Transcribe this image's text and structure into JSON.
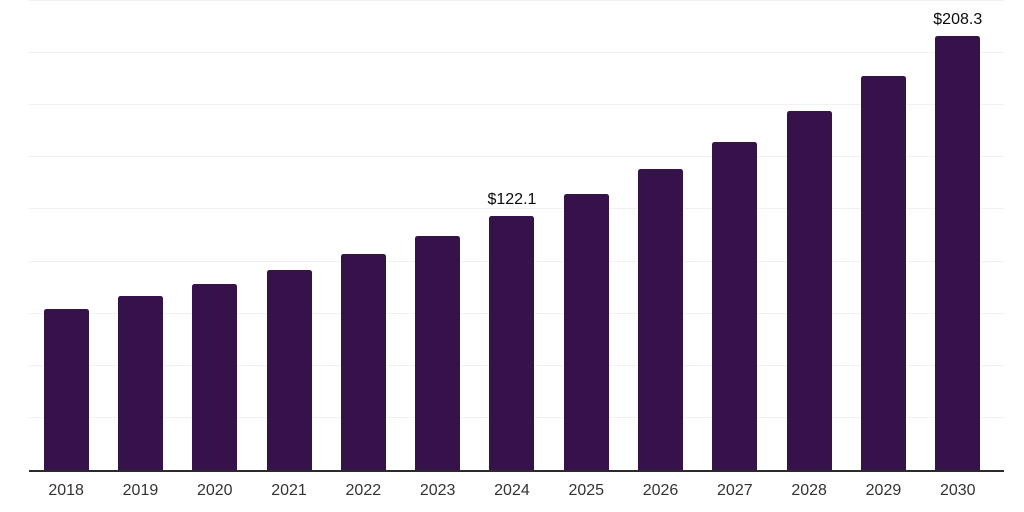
{
  "chart_data": {
    "type": "bar",
    "title": "",
    "xlabel": "",
    "ylabel": "",
    "categories": [
      "2018",
      "2019",
      "2020",
      "2021",
      "2022",
      "2023",
      "2024",
      "2025",
      "2026",
      "2027",
      "2028",
      "2029",
      "2030"
    ],
    "values": [
      77.3,
      83.5,
      89.3,
      95.9,
      103.5,
      112.3,
      122.1,
      132.6,
      144.3,
      157.3,
      172.2,
      188.9,
      208.3
    ],
    "labels": [
      "",
      "",
      "",
      "",
      "",
      "",
      "$122.1",
      "",
      "",
      "",
      "",
      "",
      "$208.3"
    ],
    "value_prefix": "$",
    "ylim": [
      0,
      225
    ],
    "gridline_interval": 25,
    "grid": true,
    "legend": false,
    "colors": {
      "bar": "#36124B",
      "gridline": "#f1f1f1",
      "axis_line": "#2b2b2b",
      "tick_label": "#333333",
      "data_label": "#0b0b0b",
      "background": "#ffffff"
    }
  }
}
